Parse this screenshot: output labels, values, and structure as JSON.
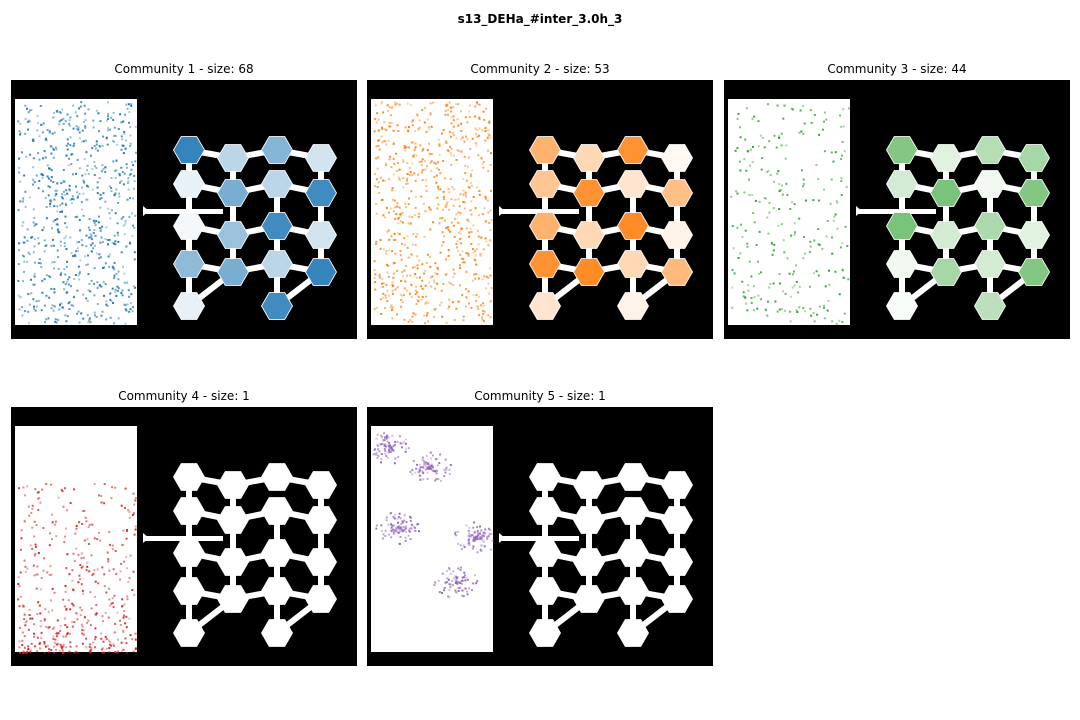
{
  "figure": {
    "title": "s13_DEHa_#inter_3.0h_3"
  },
  "panels": [
    {
      "title": "Community 1 - size: 68",
      "color": "#1f77b4",
      "pattern": "dense-uniform"
    },
    {
      "title": "Community 2 - size: 53",
      "color": "#ff7f0e",
      "pattern": "dense-uniform"
    },
    {
      "title": "Community 3 - size: 44",
      "color": "#2ca02c",
      "pattern": "sparse-uniform"
    },
    {
      "title": "Community 4 - size: 1",
      "color": "#d62728",
      "pattern": "bottom-trail"
    },
    {
      "title": "Community 5 - size: 1",
      "color": "#9467bd",
      "pattern": "upper-trail"
    }
  ],
  "chambers": [
    {
      "level": 0.9
    },
    {
      "level": 0.3
    },
    {
      "level": 0.55
    },
    {
      "level": 0.2
    },
    {
      "level": 0.1
    },
    {
      "level": 0.6
    },
    {
      "level": 0.3
    },
    {
      "level": 0.85
    },
    {
      "level": 0.05
    },
    {
      "level": 0.45
    },
    {
      "level": 0.85
    },
    {
      "level": 0.2
    },
    {
      "level": 0.5
    },
    {
      "level": 0.6
    },
    {
      "level": 0.3
    },
    {
      "level": 0.9
    },
    {
      "level": 0.1
    },
    {
      "level": 0.85
    }
  ]
}
